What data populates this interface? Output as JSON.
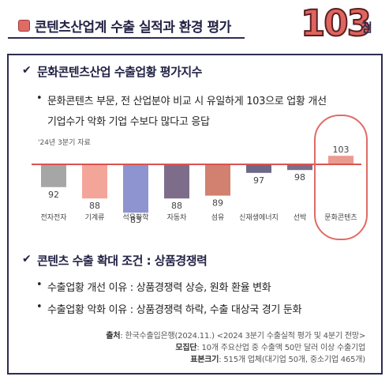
{
  "header": {
    "title": "콘텐츠산업계 수출 실적과 환경 평가",
    "score": "103",
    "score_unit": "점"
  },
  "section1": {
    "check": "✔",
    "title": "문화콘텐츠산업 수출업황 평가지수",
    "bullet": "•",
    "line1": "문화콘텐츠 부문, 전 산업분야 비교 시 유일하게 103으로 업황 개선",
    "line2": "기업수가 악화 기업 수보다 많다고 응답"
  },
  "chart_data": {
    "type": "bar",
    "subtitle": "'24년 3분기 자료",
    "categories": [
      "전자전자",
      "기계류",
      "석유화학",
      "자동차",
      "섬유",
      "신재생에너지",
      "선박",
      "문화콘텐츠"
    ],
    "values": [
      92,
      88,
      83,
      88,
      89,
      97,
      98,
      103
    ],
    "baseline": 100,
    "colors": [
      "#a6a6a6",
      "#f4a59a",
      "#8e94cf",
      "#7d6d8a",
      "#d2806f",
      "#6e6888",
      "#7a6f8a",
      "#eb9a8f"
    ],
    "baseline_color": "#d9534f"
  },
  "section2": {
    "check": "✔",
    "title": "콘텐츠 수출 확대 조건 : 상품경쟁력",
    "bullet": "•",
    "item1": "수출업황 개선 이유 : 상품경쟁력 상승, 원화 환율 변화",
    "item2": "수출업황 악화 이유 : 상품경쟁력 하락, 수출 대상국 경기 둔화"
  },
  "source": {
    "label1": "출처",
    "text1": ": 한국수출입은행(2024.11.)  <2024 3분기 수출실적 평가 및 4분기 전망>",
    "label2": "모집단",
    "text2": ": 10개 주요산업 중 수출액 50만 달러 이상 수출기업",
    "label3": "표본크기",
    "text3": ":  515개 업체(대기업 50개, 중소기업 465개)"
  }
}
